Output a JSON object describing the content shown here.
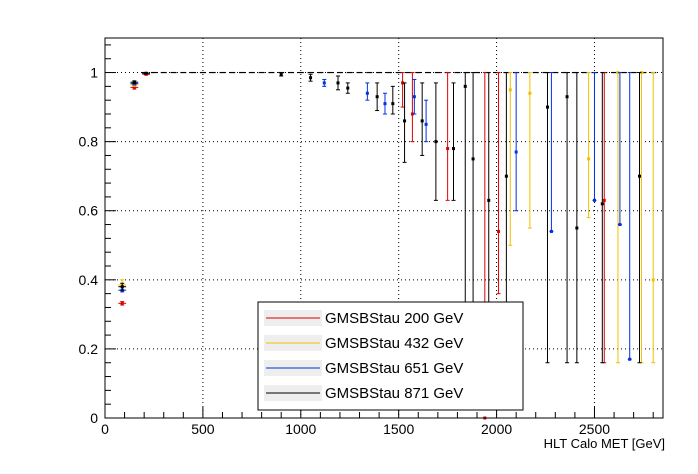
{
  "chart_data": {
    "type": "scatter",
    "title": "",
    "xlabel": "HLT Calo MET [GeV]",
    "ylabel": "",
    "xlim": [
      0,
      2850
    ],
    "ylim": [
      0,
      1.1
    ],
    "grid": true,
    "legend_position": "bottom-center",
    "x_ticks": [
      0,
      500,
      1000,
      1500,
      2000,
      2500
    ],
    "x_tick_labels": [
      "0",
      "500",
      "1000",
      "1500",
      "2000",
      "2500"
    ],
    "y_ticks": [
      0,
      0.2,
      0.4,
      0.6,
      0.8,
      1.0
    ],
    "y_tick_labels": [
      "0",
      "0.2",
      "0.4",
      "0.6",
      "0.8",
      "1"
    ],
    "series": [
      {
        "name": "GMSBStau 200 GeV",
        "color": "#e00000",
        "points": [
          {
            "x": 88,
            "y": 0.332,
            "lo": 0.327,
            "hi": 0.337,
            "xerr": 20
          },
          {
            "x": 150,
            "y": 0.957,
            "lo": 0.952,
            "hi": 0.962,
            "xerr": 20
          },
          {
            "x": 210,
            "y": 0.995,
            "lo": 0.993,
            "hi": 0.997,
            "xerr": 20
          },
          {
            "x": 1520,
            "y": 0.97,
            "lo": 0.9,
            "hi": 1.0
          },
          {
            "x": 1570,
            "y": 0.88,
            "lo": 0.8,
            "hi": 1.0
          },
          {
            "x": 1750,
            "y": 0.78,
            "lo": 0.63,
            "hi": 1.0
          },
          {
            "x": 1940,
            "y": 0.0,
            "lo": 0.22,
            "hi": 1.0
          },
          {
            "x": 2010,
            "y": 0.54,
            "lo": 0.36,
            "hi": 1.0
          },
          {
            "x": 2550,
            "y": 0.63,
            "lo": 0.16,
            "hi": 1.0
          }
        ]
      },
      {
        "name": "GMSBStau 432 GeV",
        "color": "#f0c000",
        "points": [
          {
            "x": 88,
            "y": 0.385,
            "lo": 0.38,
            "hi": 0.4,
            "xerr": 20
          },
          {
            "x": 150,
            "y": 0.965,
            "lo": 0.96,
            "hi": 0.97,
            "xerr": 20
          },
          {
            "x": 2070,
            "y": 0.95,
            "lo": 0.5,
            "hi": 1.0
          },
          {
            "x": 2170,
            "y": 0.94,
            "lo": 0.55,
            "hi": 1.0
          },
          {
            "x": 2470,
            "y": 0.75,
            "lo": 0.58,
            "hi": 1.0
          },
          {
            "x": 2620,
            "y": 1.0,
            "lo": 0.16,
            "hi": 1.0
          },
          {
            "x": 2740,
            "y": 1.0,
            "lo": 0.16,
            "hi": 1.0
          },
          {
            "x": 2800,
            "y": 0.4,
            "lo": 0.16,
            "hi": 1.0
          }
        ]
      },
      {
        "name": "GMSBStau 651 GeV",
        "color": "#0030e0",
        "points": [
          {
            "x": 88,
            "y": 0.37,
            "lo": 0.365,
            "hi": 0.38,
            "xerr": 20
          },
          {
            "x": 150,
            "y": 0.968,
            "lo": 0.964,
            "hi": 0.972,
            "xerr": 20
          },
          {
            "x": 1120,
            "y": 0.97,
            "lo": 0.96,
            "hi": 0.98
          },
          {
            "x": 1340,
            "y": 0.94,
            "lo": 0.92,
            "hi": 0.97
          },
          {
            "x": 1430,
            "y": 0.91,
            "lo": 0.88,
            "hi": 0.94
          },
          {
            "x": 1580,
            "y": 0.93,
            "lo": 0.88,
            "hi": 0.98
          },
          {
            "x": 1640,
            "y": 0.85,
            "lo": 0.8,
            "hi": 0.92
          },
          {
            "x": 2100,
            "y": 0.77,
            "lo": 0.6,
            "hi": 1.0
          },
          {
            "x": 2280,
            "y": 0.54,
            "lo": 0.54,
            "hi": 1.0
          },
          {
            "x": 2500,
            "y": 0.63,
            "lo": 0.63,
            "hi": 1.0
          },
          {
            "x": 2630,
            "y": 0.56,
            "lo": 0.56,
            "hi": 1.0
          },
          {
            "x": 2680,
            "y": 0.17,
            "lo": 0.17,
            "hi": 1.0
          }
        ]
      },
      {
        "name": "GMSBStau 871 GeV",
        "color": "#000000",
        "points": [
          {
            "x": 88,
            "y": 0.38,
            "lo": 0.37,
            "hi": 0.39,
            "xerr": 20
          },
          {
            "x": 150,
            "y": 0.972,
            "lo": 0.968,
            "hi": 0.976,
            "xerr": 20
          },
          {
            "x": 210,
            "y": 0.998,
            "lo": 0.996,
            "hi": 1.0,
            "xerr": 20
          },
          {
            "x": 900,
            "y": 0.995,
            "lo": 0.99,
            "hi": 1.0
          },
          {
            "x": 1050,
            "y": 0.985,
            "lo": 0.975,
            "hi": 0.995
          },
          {
            "x": 1190,
            "y": 0.97,
            "lo": 0.95,
            "hi": 0.99
          },
          {
            "x": 1240,
            "y": 0.955,
            "lo": 0.94,
            "hi": 0.97
          },
          {
            "x": 1390,
            "y": 0.93,
            "lo": 0.89,
            "hi": 0.97
          },
          {
            "x": 1470,
            "y": 0.91,
            "lo": 0.88,
            "hi": 0.96
          },
          {
            "x": 1530,
            "y": 0.86,
            "lo": 0.74,
            "hi": 0.97
          },
          {
            "x": 1620,
            "y": 0.86,
            "lo": 0.76,
            "hi": 0.97
          },
          {
            "x": 1690,
            "y": 0.8,
            "lo": 0.63,
            "hi": 0.97
          },
          {
            "x": 1780,
            "y": 0.78,
            "lo": 0.63,
            "hi": 0.97
          },
          {
            "x": 1840,
            "y": 0.96,
            "lo": 0.16,
            "hi": 1.0
          },
          {
            "x": 1880,
            "y": 0.75,
            "lo": 0.22,
            "hi": 1.0
          },
          {
            "x": 1960,
            "y": 0.63,
            "lo": 0.2,
            "hi": 1.0
          },
          {
            "x": 2050,
            "y": 0.7,
            "lo": 0.16,
            "hi": 1.0
          },
          {
            "x": 2260,
            "y": 0.9,
            "lo": 0.16,
            "hi": 1.0
          },
          {
            "x": 2360,
            "y": 0.93,
            "lo": 0.16,
            "hi": 1.0
          },
          {
            "x": 2410,
            "y": 0.55,
            "lo": 0.16,
            "hi": 1.0
          },
          {
            "x": 2540,
            "y": 0.62,
            "lo": 0.16,
            "hi": 1.0
          },
          {
            "x": 2730,
            "y": 0.7,
            "lo": 0.16,
            "hi": 1.0
          }
        ]
      }
    ],
    "plateau": {
      "x_start": 200,
      "x_end": 2830,
      "y": 1.0,
      "color": "#000000"
    }
  }
}
